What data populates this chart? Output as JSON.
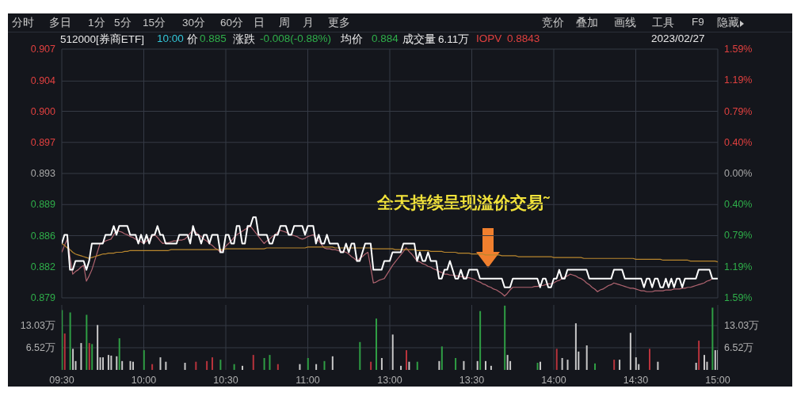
{
  "chart_data": [
    {
      "type": "line",
      "annotations": [
        "分时",
        "多日",
        "1分",
        "5分",
        "15分",
        "30分",
        "60分",
        "日",
        "周",
        "月",
        "更多",
        "竞价",
        "叠加",
        "画线",
        "工具",
        "F9",
        "隐藏",
        "512000[券商ETF]",
        "10:00",
        "价",
        "0.885",
        "涨跌",
        "-0.008(-0.88%)",
        "均价",
        "0.884",
        "成交量",
        "6.11万",
        "IOPV",
        "0.8843",
        "2023/02/27",
        "全天持续呈现溢价交易˜"
      ],
      "categories": [
        null,
        null,
        null,
        null,
        null,
        null,
        null,
        null,
        null,
        null,
        null,
        null,
        null,
        null,
        null,
        null,
        null,
        null,
        null,
        null,
        null,
        null,
        null,
        null,
        null,
        null,
        null,
        null,
        null,
        null,
        null,
        null,
        null,
        null,
        null,
        null,
        null,
        null,
        null,
        null,
        null,
        null,
        null,
        null,
        null,
        null,
        null,
        null,
        null,
        null,
        null,
        null,
        null,
        null,
        null,
        null,
        null,
        null,
        null,
        null,
        null,
        null,
        null,
        null,
        null,
        null,
        null,
        null,
        null,
        null,
        null,
        null,
        null,
        null,
        null,
        null,
        null,
        null,
        null,
        null,
        null,
        null,
        null,
        null,
        null,
        null,
        null,
        null,
        null,
        null,
        null,
        null,
        null,
        null,
        null,
        null,
        null,
        null,
        null,
        null,
        null,
        null,
        null,
        null,
        null,
        null,
        null,
        null,
        null,
        null,
        null,
        null,
        null,
        null,
        null,
        null,
        null,
        null,
        null,
        null,
        null,
        null,
        null,
        null,
        null,
        null,
        null,
        null,
        null,
        null,
        null,
        null,
        null,
        null,
        null,
        null,
        null,
        null,
        null,
        null,
        null,
        null,
        null,
        null,
        null,
        null,
        null,
        null,
        null,
        null,
        null,
        null,
        null,
        null,
        null,
        null,
        null,
        null,
        null,
        null,
        null,
        null,
        null,
        null,
        null,
        null,
        null,
        null,
        null,
        null,
        null,
        null,
        null,
        null,
        null,
        null,
        null,
        null,
        null,
        null,
        null,
        null,
        null,
        null,
        null,
        null,
        null,
        null,
        null,
        null,
        null,
        null,
        null,
        null,
        null,
        null,
        null,
        null,
        null,
        null,
        null,
        null,
        null,
        null,
        null,
        null,
        null,
        null,
        null,
        null,
        null,
        null,
        null,
        null,
        null,
        null,
        null,
        null,
        null,
        null,
        null,
        null,
        null,
        null,
        null,
        null,
        null,
        null,
        null,
        null,
        null,
        null,
        null,
        null,
        null,
        null,
        null,
        null,
        null,
        null,
        null
      ],
      "tick_labels": "y",
      "ylim": [
        0.8788,
        0.9072
      ],
      "yticks": [
        {
          "value": 0.9072,
          "label": "0.907"
        },
        {
          "value": 0.90355,
          "label": "0.904"
        },
        {
          "value": 0.9001,
          "label": "0.900"
        },
        {
          "value": 0.89655,
          "label": "0.897"
        },
        0.893,
        {
          "value": 0.88945,
          "label": "0.889"
        },
        {
          "value": 0.8859,
          "label": "0.886"
        },
        {
          "value": 0.88235,
          "label": "0.882"
        },
        {
          "value": 0.8788,
          "label": "0.879"
        }
      ],
      "y2lim": [
        -1.59,
        1.59
      ],
      "y2ticks": [
        {
          "value": 1.59,
          "label": "1.59%"
        },
        {
          "value": 1.19,
          "label": "1.19%"
        },
        {
          "value": 0.79,
          "label": "0.79%"
        },
        {
          "value": 0.4,
          "label": "0.40%"
        },
        {
          "value": 0,
          "label": "0.00%"
        },
        {
          "value": -0.4,
          "label": "0.40%"
        },
        {
          "value": -0.79,
          "label": "0.79%"
        },
        {
          "value": -1.19,
          "label": "1.19%"
        },
        {
          "value": -1.59,
          "label": "1.59%"
        }
      ],
      "grid": true,
      "legend": false,
      "series": [
        {
          "color": "#b06470",
          "values": [
            0.884,
            0.8848,
            0.8855,
            0.8835,
            0.8815,
            0.8818,
            0.882,
            0.8823,
            0.8825,
            0.8807,
            0.8813,
            0.882,
            0.883,
            0.884,
            0.885,
            0.8851,
            0.8853,
            0.8854,
            0.8855,
            0.886,
            0.8865,
            0.8864,
            0.8863,
            0.8861,
            0.886,
            0.8858,
            0.8857,
            0.8855,
            0.8853,
            0.8852,
            0.885,
            0.8853,
            0.8855,
            0.8858,
            0.886,
            0.8857,
            0.8853,
            0.885,
            0.8851,
            0.8851,
            0.8852,
            0.8853,
            0.8853,
            0.8854,
            0.8854,
            0.8855,
            0.8858,
            0.8862,
            0.8865,
            0.8863,
            0.886,
            0.8858,
            0.8855,
            0.8853,
            0.885,
            0.8848,
            0.8845,
            0.8843,
            0.884,
            0.8843,
            0.8847,
            0.885,
            0.8853,
            0.8857,
            0.886,
            0.8862,
            0.8864,
            0.8866,
            0.8868,
            0.887,
            0.8866,
            0.8862,
            0.8858,
            0.8854,
            0.885,
            0.8853,
            0.8855,
            0.8858,
            0.886,
            0.8863,
            0.8865,
            0.8864,
            0.8863,
            0.8861,
            0.886,
            0.8859,
            0.8858,
            0.8856,
            0.8855,
            0.8856,
            0.8858,
            0.8859,
            0.886,
            0.8856,
            0.8853,
            0.8849,
            0.8845,
            0.8844,
            0.8844,
            0.8843,
            0.8843,
            0.8842,
            0.8841,
            0.8841,
            0.884,
            0.8838,
            0.8835,
            0.8833,
            0.883,
            0.8833,
            0.8835,
            0.8838,
            0.884,
            0.8823,
            0.8805,
            0.8806,
            0.8808,
            0.8809,
            0.881,
            0.8815,
            0.882,
            0.8825,
            0.8829,
            0.8833,
            0.8837,
            0.8841,
            0.8845,
            0.8841,
            0.8838,
            0.8834,
            0.883,
            0.8829,
            0.8827,
            0.8826,
            0.8824,
            0.8823,
            0.8821,
            0.882,
            0.8818,
            0.8817,
            0.8815,
            0.8815,
            0.8814,
            0.8814,
            0.8813,
            0.8813,
            0.8812,
            0.8812,
            0.8811,
            0.8811,
            0.881,
            0.8809,
            0.8807,
            0.8806,
            0.8804,
            0.8803,
            0.8801,
            0.88,
            0.8798,
            0.8797,
            0.8795,
            0.8793,
            0.879,
            0.8793,
            0.8797,
            0.88,
            0.88,
            0.88,
            0.88,
            0.88,
            0.88,
            0.88,
            0.88,
            0.8801,
            0.8801,
            0.8802,
            0.8802,
            0.8803,
            0.8804,
            0.8804,
            0.8805,
            0.8807,
            0.8808,
            0.881,
            0.8812,
            0.8813,
            0.8815,
            0.8814,
            0.8813,
            0.8811,
            0.881,
            0.8808,
            0.8805,
            0.8803,
            0.88,
            0.8798,
            0.8795,
            0.8797,
            0.8798,
            0.88,
            0.8802,
            0.8803,
            0.8805,
            0.8804,
            0.8803,
            0.8802,
            0.8801,
            0.88,
            0.8799,
            0.8799,
            0.8798,
            0.8797,
            0.8796,
            0.8796,
            0.8795,
            0.8795,
            0.8795,
            0.8796,
            0.8796,
            0.8796,
            0.8796,
            0.8797,
            0.8797,
            0.8797,
            0.8798,
            0.8798,
            0.8798,
            0.8799,
            0.8799,
            0.88,
            0.88,
            0.8801,
            0.8802,
            0.8803,
            0.8804,
            0.8805,
            0.8807,
            0.8808,
            0.881,
            null,
            null
          ]
        },
        {
          "color": "#b8862e",
          "values": [
            0.885,
            0.8848,
            0.8845,
            0.8843,
            0.884,
            0.8838,
            0.8837,
            0.8836,
            0.8835,
            0.8834,
            0.8833,
            0.8834,
            0.8835,
            0.8836,
            0.8837,
            0.8838,
            0.8838,
            0.8839,
            0.8839,
            0.8839,
            0.884,
            0.884,
            0.884,
            0.8841,
            0.8841,
            0.8842,
            0.8842,
            0.8842,
            0.8842,
            0.8842,
            0.8842,
            0.8842,
            0.8842,
            0.8842,
            0.8842,
            0.8842,
            0.8842,
            0.8842,
            0.8842,
            0.8842,
            0.8843,
            0.8843,
            0.8843,
            0.8843,
            0.8843,
            0.8843,
            0.8843,
            0.8843,
            0.8843,
            0.8843,
            0.8843,
            0.8843,
            0.8843,
            0.8843,
            0.8843,
            0.8843,
            0.8843,
            0.8843,
            0.8843,
            0.8843,
            0.8844,
            0.8844,
            0.8844,
            0.8844,
            0.8844,
            0.8844,
            0.8844,
            0.8844,
            0.8844,
            0.8844,
            0.8844,
            0.8844,
            0.8844,
            0.8844,
            0.8844,
            0.8845,
            0.8845,
            0.8845,
            0.8845,
            0.8845,
            0.8845,
            0.8845,
            0.8845,
            0.8845,
            0.8845,
            0.8845,
            0.8845,
            0.8845,
            0.8845,
            0.8845,
            0.8846,
            0.8846,
            0.8846,
            0.8846,
            0.8846,
            0.8846,
            0.8846,
            0.8846,
            0.8846,
            0.8846,
            0.8845,
            0.8845,
            0.8845,
            0.8845,
            0.8845,
            0.8845,
            0.8845,
            0.8845,
            0.8845,
            0.8845,
            0.8845,
            0.8845,
            0.8845,
            0.8845,
            0.8844,
            0.8844,
            0.8844,
            0.8844,
            0.8844,
            0.8844,
            0.8844,
            0.8844,
            0.8843,
            0.8843,
            0.8843,
            0.8843,
            0.8843,
            0.8843,
            0.8843,
            0.8843,
            0.8842,
            0.8842,
            0.8842,
            0.8842,
            0.8842,
            0.8841,
            0.8841,
            0.8841,
            0.8841,
            0.8841,
            0.884,
            0.884,
            0.884,
            0.884,
            0.884,
            0.8839,
            0.8839,
            0.8839,
            0.8839,
            0.8839,
            0.8838,
            0.8838,
            0.8838,
            0.8838,
            0.8838,
            0.8837,
            0.8837,
            0.8837,
            0.8837,
            0.8837,
            0.8837,
            0.8836,
            0.8836,
            0.8836,
            0.8836,
            0.8836,
            0.8836,
            0.8835,
            0.8835,
            0.8835,
            0.8835,
            0.8835,
            0.8835,
            0.8835,
            0.8835,
            0.8835,
            0.8835,
            0.8835,
            0.8835,
            0.8835,
            0.8834,
            0.8834,
            0.8834,
            0.8834,
            0.8834,
            0.8834,
            0.8834,
            0.8834,
            0.8834,
            0.8834,
            0.8834,
            0.8833,
            0.8833,
            0.8833,
            0.8833,
            0.8833,
            0.8833,
            0.8833,
            0.8833,
            0.8833,
            0.8833,
            0.8833,
            0.8833,
            0.8833,
            0.8833,
            0.8833,
            0.8833,
            0.8833,
            0.8833,
            0.8833,
            0.8832,
            0.8832,
            0.8832,
            0.8832,
            0.8832,
            0.8832,
            0.8832,
            0.8832,
            0.8832,
            0.8832,
            0.8831,
            0.8831,
            0.8831,
            0.8831,
            0.8831,
            0.8831,
            0.8831,
            0.8831,
            0.8831,
            0.8831,
            0.883,
            0.883,
            0.883,
            0.883,
            0.883,
            0.883,
            0.883,
            0.883,
            0.883,
            0.883,
            0.8829
          ]
        },
        {
          "color": "#ffffff",
          "values": [
            0.885,
            0.886,
            0.886,
            0.882,
            0.882,
            0.883,
            0.883,
            0.883,
            0.883,
            0.882,
            0.883,
            0.885,
            0.885,
            0.885,
            0.885,
            0.885,
            0.886,
            0.886,
            0.886,
            0.887,
            0.886,
            0.887,
            0.887,
            0.887,
            0.887,
            0.886,
            0.886,
            0.886,
            0.885,
            0.886,
            0.885,
            0.886,
            0.885,
            0.886,
            0.886,
            0.887,
            0.886,
            0.886,
            0.885,
            0.885,
            0.885,
            0.885,
            0.885,
            0.886,
            0.886,
            0.886,
            0.886,
            0.885,
            0.887,
            0.886,
            0.886,
            0.885,
            0.886,
            0.886,
            0.885,
            0.886,
            0.886,
            0.886,
            0.884,
            0.884,
            0.886,
            0.886,
            0.885,
            0.885,
            0.887,
            0.887,
            0.885,
            0.885,
            0.887,
            0.887,
            0.888,
            0.888,
            0.886,
            0.886,
            0.886,
            0.886,
            0.885,
            0.885,
            0.886,
            0.886,
            0.887,
            0.887,
            0.887,
            0.886,
            0.886,
            0.887,
            0.887,
            0.887,
            0.887,
            0.886,
            0.887,
            0.887,
            0.887,
            0.885,
            0.886,
            0.885,
            0.885,
            0.886,
            0.885,
            0.885,
            0.885,
            0.885,
            0.884,
            0.884,
            0.885,
            0.884,
            0.885,
            0.885,
            0.883,
            0.883,
            0.884,
            0.885,
            0.885,
            0.885,
            0.882,
            0.882,
            0.882,
            0.882,
            0.883,
            0.883,
            0.883,
            0.884,
            0.884,
            0.884,
            0.884,
            0.885,
            0.885,
            0.885,
            0.885,
            0.885,
            0.883,
            0.884,
            0.883,
            0.883,
            0.884,
            0.883,
            0.883,
            0.883,
            0.881,
            0.881,
            0.882,
            0.882,
            0.883,
            0.882,
            0.881,
            0.881,
            0.882,
            0.881,
            0.881,
            0.882,
            0.882,
            0.882,
            0.882,
            0.881,
            0.881,
            0.881,
            0.881,
            0.881,
            0.881,
            0.881,
            0.881,
            0.881,
            0.88,
            0.88,
            0.88,
            0.881,
            0.881,
            0.881,
            0.881,
            0.881,
            0.881,
            0.881,
            0.881,
            0.881,
            0.881,
            0.88,
            0.881,
            0.881,
            0.88,
            0.88,
            0.881,
            0.881,
            0.882,
            0.881,
            0.881,
            0.882,
            0.882,
            0.882,
            0.882,
            0.882,
            0.882,
            0.882,
            0.882,
            0.881,
            0.881,
            0.881,
            0.881,
            0.881,
            0.881,
            0.881,
            0.881,
            0.881,
            0.882,
            0.882,
            0.882,
            0.882,
            0.881,
            0.881,
            0.881,
            0.881,
            0.881,
            0.881,
            0.881,
            0.88,
            0.881,
            0.881,
            0.88,
            0.881,
            0.881,
            0.88,
            0.88,
            0.881,
            0.88,
            0.881,
            0.88,
            0.881,
            0.881,
            0.88,
            0.881,
            0.881,
            0.881,
            0.881,
            0.881,
            0.882,
            0.882,
            0.882,
            0.882,
            0.882,
            0.881,
            0.881,
            0.881
          ]
        }
      ]
    },
    {
      "type": "bar",
      "categories": [
        "09:30",
        null,
        null,
        null,
        null,
        null,
        null,
        null,
        null,
        null,
        null,
        null,
        null,
        null,
        null,
        null,
        null,
        null,
        null,
        null,
        null,
        null,
        null,
        null,
        null,
        null,
        null,
        null,
        null,
        null,
        "10:00",
        null,
        null,
        null,
        null,
        null,
        null,
        null,
        null,
        null,
        null,
        null,
        null,
        null,
        null,
        null,
        null,
        null,
        null,
        null,
        null,
        null,
        null,
        null,
        null,
        null,
        null,
        null,
        null,
        null,
        "10:30",
        null,
        null,
        null,
        null,
        null,
        null,
        null,
        null,
        null,
        null,
        null,
        null,
        null,
        null,
        null,
        null,
        null,
        null,
        null,
        null,
        null,
        null,
        null,
        null,
        null,
        null,
        null,
        null,
        null,
        "11:00",
        null,
        null,
        null,
        null,
        null,
        null,
        null,
        null,
        null,
        null,
        null,
        null,
        null,
        null,
        null,
        null,
        null,
        null,
        null,
        null,
        null,
        null,
        null,
        null,
        null,
        null,
        null,
        null,
        null,
        "13:00",
        null,
        null,
        null,
        null,
        null,
        null,
        null,
        null,
        null,
        null,
        null,
        null,
        null,
        null,
        null,
        null,
        null,
        null,
        null,
        null,
        null,
        null,
        null,
        null,
        null,
        null,
        null,
        null,
        null,
        "13:30",
        null,
        null,
        null,
        null,
        null,
        null,
        null,
        null,
        null,
        null,
        null,
        null,
        null,
        null,
        null,
        null,
        null,
        null,
        null,
        null,
        null,
        null,
        null,
        null,
        null,
        null,
        null,
        null,
        null,
        "14:00",
        null,
        null,
        null,
        null,
        null,
        null,
        null,
        null,
        null,
        null,
        null,
        null,
        null,
        null,
        null,
        null,
        null,
        null,
        null,
        null,
        null,
        null,
        null,
        null,
        null,
        null,
        null,
        null,
        null,
        "14:30",
        null,
        null,
        null,
        null,
        null,
        null,
        null,
        null,
        null,
        null,
        null,
        null,
        null,
        null,
        null,
        null,
        null,
        null,
        null,
        null,
        null,
        null,
        null,
        null,
        null,
        null,
        null,
        null,
        null,
        "15:00"
      ],
      "values": [
        17.6,
        10.7,
        null,
        16.9,
        6.2,
        2.6,
        null,
        7.9,
        null,
        16.2,
        7.9,
        7.6,
        null,
        13.2,
        3.7,
        3.7,
        null,
        4.4,
        4.2,
        null,
        4.0,
        9.3,
        2.6,
        null,
        null,
        2.6,
        2.4,
        null,
        null,
        null,
        5.8,
        null,
        null,
        1.7,
        null,
        null,
        3.7,
        null,
        2.4,
        null,
        null,
        null,
        null,
        null,
        null,
        2.1,
        null,
        null,
        null,
        2.4,
        null,
        null,
        null,
        2.6,
        null,
        3.7,
        null,
        null,
        3.0,
        null,
        null,
        null,
        null,
        1.7,
        null,
        null,
        1.2,
        null,
        null,
        null,
        4.4,
        null,
        null,
        null,
        3.5,
        null,
        4.4,
        null,
        null,
        1.7,
        null,
        null,
        null,
        null,
        null,
        null,
        null,
        1.7,
        null,
        null,
        3.5,
        null,
        null,
        1.7,
        null,
        null,
        2.6,
        null,
        null,
        4.0,
        null,
        null,
        null,
        null,
        null,
        null,
        null,
        null,
        null,
        8.2,
        null,
        null,
        null,
        2.4,
        null,
        15.1,
        null,
        3.5,
        null,
        null,
        null,
        10.4,
        null,
        null,
        1.2,
        null,
        5.8,
        2.4,
        null,
        null,
        2.4,
        null,
        null,
        null,
        null,
        null,
        null,
        null,
        2.6,
        6.9,
        null,
        null,
        null,
        null,
        3.5,
        null,
        null,
        2.6,
        null,
        null,
        null,
        null,
        2.6,
        17.3,
        null,
        2.6,
        null,
        1.2,
        null,
        null,
        null,
        null,
        18.9,
        4.4,
        2.6,
        null,
        null,
        null,
        null,
        null,
        null,
        null,
        null,
        null,
        2.1,
        2.4,
        null,
        null,
        null,
        null,
        null,
        6.2,
        null,
        3.5,
        null,
        3.0,
        null,
        null,
        13.7,
        5.4,
        null,
        null,
        7.2,
        null,
        null,
        1.9,
        null,
        null,
        null,
        null,
        null,
        null,
        3.0,
        null,
        3.0,
        null,
        null,
        null,
        10.9,
        null,
        3.7,
        1.7,
        null,
        null,
        null,
        6.2,
        null,
        null,
        2.4,
        null,
        null,
        null,
        null,
        null,
        null,
        null,
        null,
        null,
        null,
        null,
        null,
        null,
        2.1,
        8.6,
        null,
        4.4,
        2.4,
        null,
        18.3,
        5.8,
        5.8
      ],
      "colors": [
        "#2f9e44",
        "#b8333c",
        null,
        "#2f9e44",
        "#c8c8c8",
        "#c8c8c8",
        null,
        "#c8c8c8",
        null,
        "#2f9e44",
        "#b8333c",
        "#2f9e44",
        null,
        "#c8c8c8",
        "#c8c8c8",
        "#c8c8c8",
        null,
        "#c8c8c8",
        "#c8c8c8",
        null,
        "#c8c8c8",
        "#2f9e44",
        "#c8c8c8",
        null,
        null,
        "#c8c8c8",
        "#c8c8c8",
        null,
        null,
        null,
        "#2f9e44",
        null,
        null,
        "#b8333c",
        null,
        null,
        "#c8c8c8",
        null,
        "#c8c8c8",
        null,
        null,
        null,
        null,
        null,
        null,
        "#c8c8c8",
        null,
        null,
        null,
        "#b8333c",
        null,
        null,
        null,
        "#b8333c",
        null,
        "#b8333c",
        null,
        null,
        "#2f9e44",
        null,
        null,
        null,
        null,
        "#2f9e44",
        null,
        null,
        "#c8c8c8",
        null,
        null,
        null,
        "#b8333c",
        null,
        null,
        null,
        "#2f9e44",
        null,
        "#2f9e44",
        null,
        null,
        "#b8333c",
        null,
        null,
        null,
        null,
        null,
        null,
        null,
        "#c8c8c8",
        null,
        null,
        "#2f9e44",
        null,
        null,
        "#c8c8c8",
        null,
        null,
        "#2f9e44",
        null,
        null,
        "#c8c8c8",
        null,
        null,
        null,
        null,
        null,
        null,
        null,
        null,
        null,
        "#2f9e44",
        null,
        null,
        null,
        "#b8333c",
        null,
        "#2f9e44",
        null,
        "#c8c8c8",
        null,
        null,
        null,
        "#c8c8c8",
        null,
        null,
        "#c8c8c8",
        null,
        "#b8333c",
        "#c8c8c8",
        null,
        null,
        "#2f9e44",
        null,
        null,
        null,
        null,
        null,
        null,
        null,
        "#c8c8c8",
        "#2f9e44",
        null,
        null,
        null,
        null,
        "#2f9e44",
        null,
        null,
        "#c8c8c8",
        null,
        null,
        null,
        null,
        "#c8c8c8",
        "#2f9e44",
        null,
        "#c8c8c8",
        null,
        "#c8c8c8",
        null,
        null,
        null,
        null,
        "#2f9e44",
        "#c8c8c8",
        "#c8c8c8",
        null,
        null,
        null,
        null,
        null,
        null,
        null,
        null,
        null,
        "#2f9e44",
        "#c8c8c8",
        null,
        null,
        null,
        null,
        null,
        "#b8333c",
        null,
        "#c8c8c8",
        null,
        "#c8c8c8",
        null,
        null,
        "#c8c8c8",
        "#c8c8c8",
        null,
        null,
        "#c8c8c8",
        null,
        null,
        "#2f9e44",
        null,
        null,
        null,
        null,
        null,
        null,
        "#b8333c",
        null,
        "#c8c8c8",
        null,
        null,
        null,
        "#c8c8c8",
        null,
        "#c8c8c8",
        "#c8c8c8",
        null,
        null,
        null,
        "#b8333c",
        null,
        null,
        "#c8c8c8",
        null,
        null,
        null,
        null,
        null,
        null,
        null,
        null,
        null,
        null,
        null,
        null,
        null,
        "#c8c8c8",
        "#b8333c",
        null,
        "#c8c8c8",
        "#c8c8c8",
        null,
        "#2f9e44",
        "#c8c8c8",
        "#c8c8c8"
      ],
      "ylim": [
        0,
        19.1
      ],
      "yticks": [
        {
          "value": 6.52,
          "label": "6.52万"
        },
        {
          "value": 13.03,
          "label": "13.03万"
        }
      ],
      "y2lim": [
        0,
        19.1
      ],
      "y2ticks": [
        {
          "value": 6.52,
          "label": "6.52万"
        },
        {
          "value": 13.03,
          "label": "13.03万"
        }
      ],
      "grid": true,
      "legend": false
    }
  ]
}
